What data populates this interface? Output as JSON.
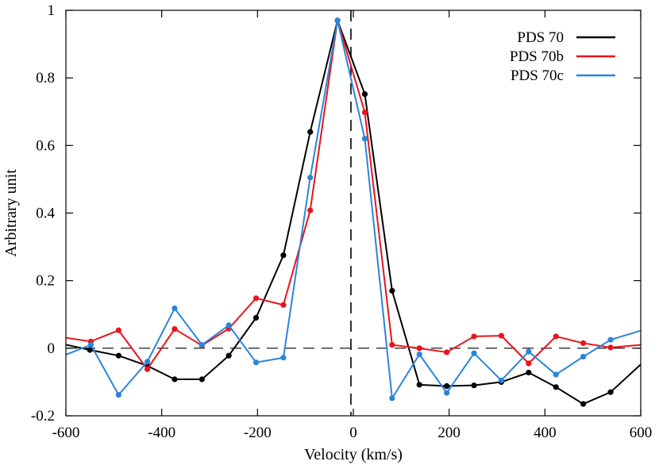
{
  "chart_data": {
    "type": "line",
    "title": "",
    "xlabel": "Velocity (km/s)",
    "ylabel": "Arbitrary unit",
    "xlim": [
      -600,
      600
    ],
    "ylim": [
      -0.2,
      1.0
    ],
    "xticks": [
      -600,
      -400,
      -200,
      0,
      200,
      400,
      600
    ],
    "yticks": [
      -0.2,
      0,
      0.2,
      0.4,
      0.6,
      0.8,
      1.0
    ],
    "xtick_labels": [
      "-600",
      "-400",
      "-200",
      "0",
      "200",
      "400",
      "600"
    ],
    "ytick_labels": [
      "-0.2",
      "0",
      "0.2",
      "0.4",
      "0.6",
      "0.8",
      "1"
    ],
    "legend_position": "top-right",
    "grid": false,
    "reference_lines": {
      "horizontal_at_y": 0,
      "vertical_at_x": -5,
      "style": "dashed",
      "color": "#000000"
    },
    "series": [
      {
        "name": "PDS 70",
        "color": "#000000",
        "x": [
          -605,
          -550,
          -490,
          -430,
          -373,
          -316,
          -260,
          -203,
          -146,
          -90,
          -33,
          24,
          81,
          138,
          195,
          252,
          309,
          366,
          423,
          480,
          537,
          600
        ],
        "y": [
          0.012,
          -0.005,
          -0.022,
          -0.052,
          -0.092,
          -0.092,
          -0.022,
          0.09,
          0.275,
          0.64,
          0.97,
          0.752,
          0.17,
          -0.108,
          -0.112,
          -0.11,
          -0.1,
          -0.072,
          -0.115,
          -0.165,
          -0.13,
          -0.048
        ]
      },
      {
        "name": "PDS 70b",
        "color": "#e8141b",
        "x": [
          -605,
          -548,
          -490,
          -430,
          -373,
          -316,
          -260,
          -203,
          -146,
          -90,
          -33,
          24,
          81,
          138,
          195,
          252,
          309,
          366,
          423,
          480,
          537,
          600
        ],
        "y": [
          0.032,
          0.02,
          0.053,
          -0.062,
          0.057,
          0.008,
          0.058,
          0.148,
          0.128,
          0.408,
          0.97,
          0.698,
          0.01,
          0.0,
          -0.012,
          0.035,
          0.037,
          -0.045,
          0.035,
          0.015,
          0.002,
          0.01
        ]
      },
      {
        "name": "PDS 70c",
        "color": "#2a85dc",
        "x": [
          -605,
          -548,
          -490,
          -430,
          -373,
          -316,
          -260,
          -203,
          -146,
          -90,
          -33,
          24,
          81,
          138,
          195,
          252,
          309,
          366,
          423,
          480,
          537,
          600
        ],
        "y": [
          -0.022,
          0.01,
          -0.138,
          -0.04,
          0.118,
          0.01,
          0.068,
          -0.042,
          -0.028,
          0.505,
          0.97,
          0.62,
          -0.148,
          -0.018,
          -0.132,
          -0.015,
          -0.095,
          -0.01,
          -0.078,
          -0.025,
          0.025,
          0.052
        ]
      }
    ]
  }
}
